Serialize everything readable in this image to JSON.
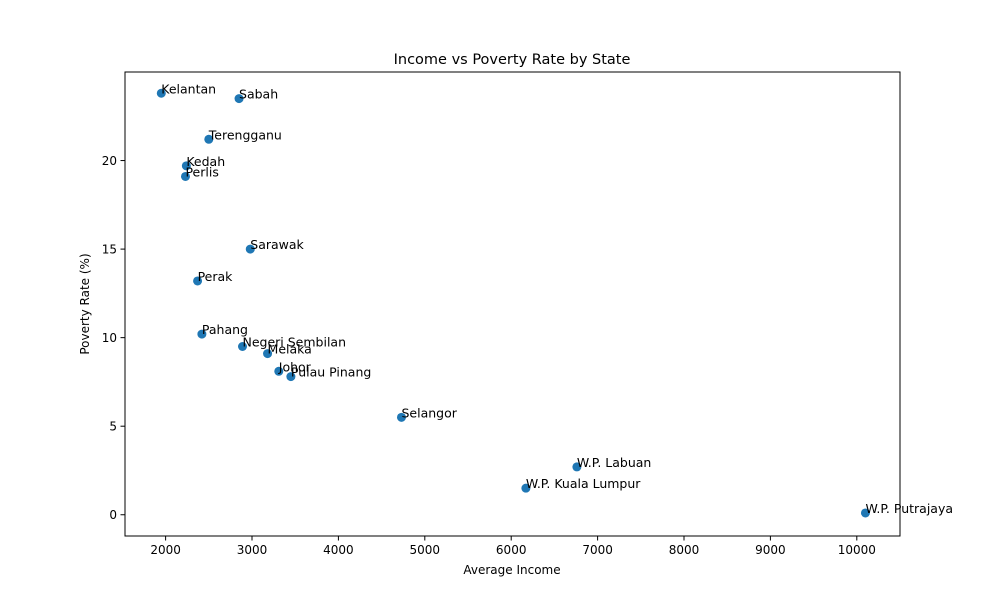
{
  "chart_data": {
    "type": "scatter",
    "title": "Income vs Poverty Rate by State",
    "xlabel": "Average Income",
    "ylabel": "Poverty Rate (%)",
    "xlim": [
      1530,
      10500
    ],
    "ylim": [
      -1.2,
      25.0
    ],
    "xticks": [
      2000,
      3000,
      4000,
      5000,
      6000,
      7000,
      8000,
      9000,
      10000
    ],
    "yticks": [
      0,
      5,
      10,
      15,
      20
    ],
    "grid": false,
    "marker_color": "#1f77b4",
    "points": [
      {
        "label": "Kelantan",
        "x": 1950,
        "y": 23.8
      },
      {
        "label": "Sabah",
        "x": 2850,
        "y": 23.5
      },
      {
        "label": "Terengganu",
        "x": 2500,
        "y": 21.2
      },
      {
        "label": "Kedah",
        "x": 2240,
        "y": 19.7
      },
      {
        "label": "Perlis",
        "x": 2230,
        "y": 19.1
      },
      {
        "label": "Sarawak",
        "x": 2980,
        "y": 15.0
      },
      {
        "label": "Perak",
        "x": 2370,
        "y": 13.2
      },
      {
        "label": "Pahang",
        "x": 2420,
        "y": 10.2
      },
      {
        "label": "Negeri Sembilan",
        "x": 2890,
        "y": 9.5
      },
      {
        "label": "Melaka",
        "x": 3180,
        "y": 9.1
      },
      {
        "label": "Johor",
        "x": 3310,
        "y": 8.1
      },
      {
        "label": "Pulau Pinang",
        "x": 3450,
        "y": 7.8
      },
      {
        "label": "Selangor",
        "x": 4730,
        "y": 5.5
      },
      {
        "label": "W.P. Labuan",
        "x": 6760,
        "y": 2.7
      },
      {
        "label": "W.P. Kuala Lumpur",
        "x": 6170,
        "y": 1.5
      },
      {
        "label": "W.P. Putrajaya",
        "x": 10100,
        "y": 0.1
      }
    ]
  }
}
